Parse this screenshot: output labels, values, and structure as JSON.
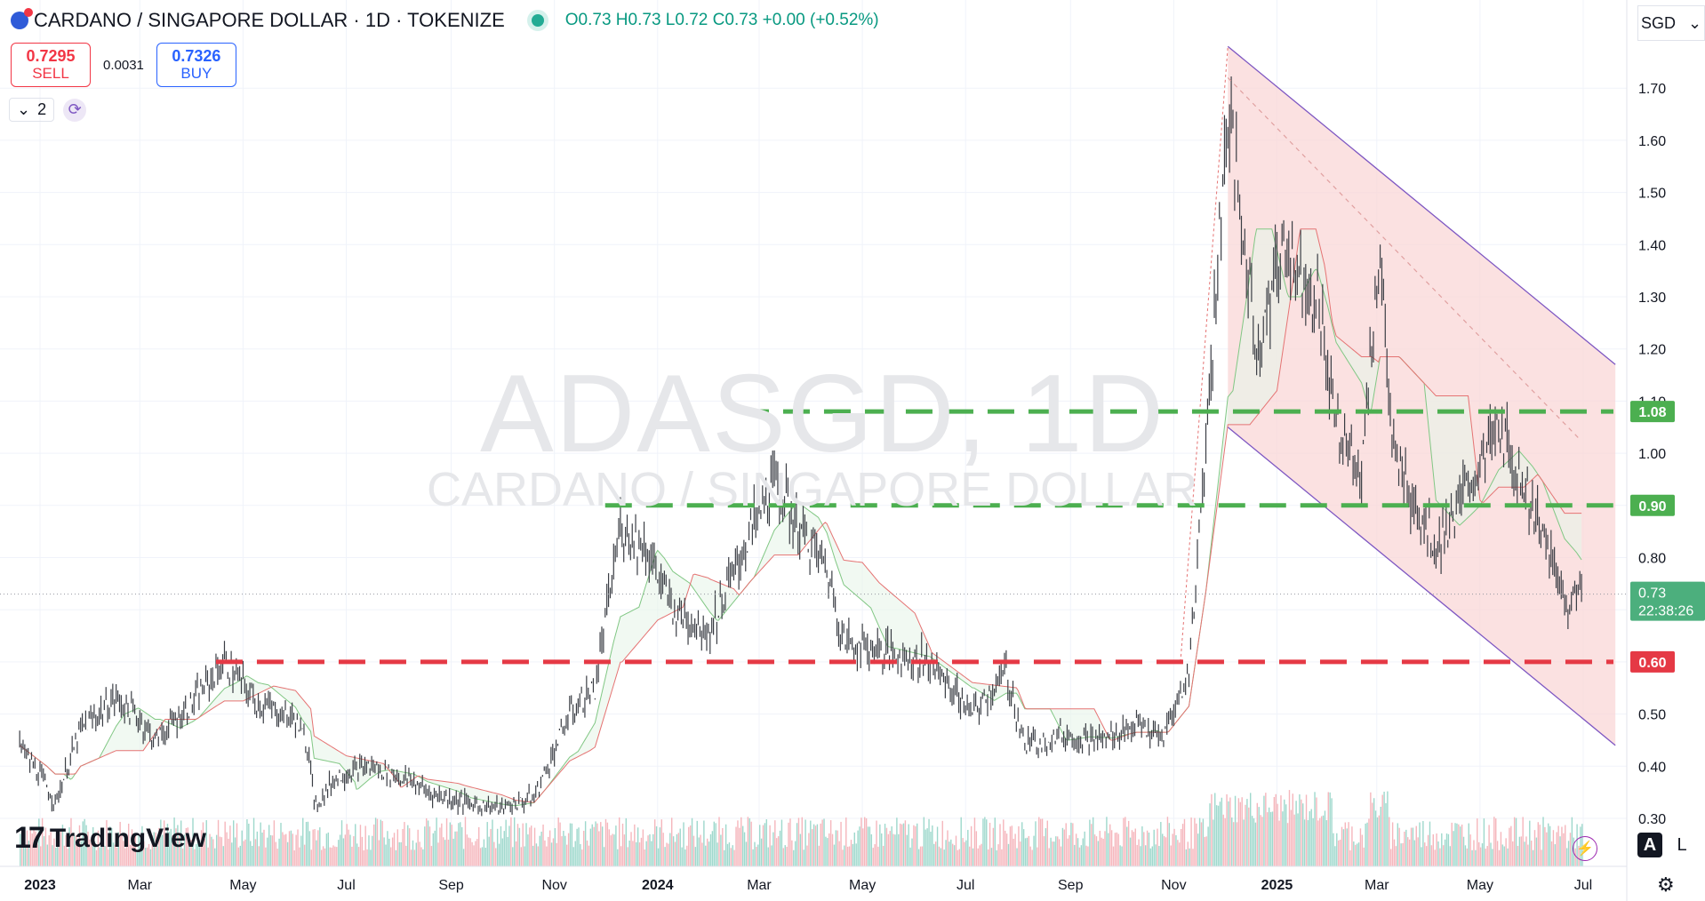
{
  "header": {
    "title": "CARDANO / SINGAPORE DOLLAR · 1D · TOKENIZE",
    "ohlc": {
      "o_label": "O",
      "o": "0.73",
      "h_label": "H",
      "h": "0.73",
      "l_label": "L",
      "l": "0.72",
      "c_label": "C",
      "c": "0.73",
      "change": "+0.00 (+0.52%)"
    }
  },
  "trade": {
    "sell_price": "0.7295",
    "sell_label": "SELL",
    "spread": "0.0031",
    "buy_price": "0.7326",
    "buy_label": "BUY"
  },
  "indicators": {
    "count": "2"
  },
  "currency": "SGD",
  "watermark": {
    "symbol": "ADASGD, 1D",
    "name": "CARDANO / SINGAPORE DOLLAR"
  },
  "brand": "TradingView",
  "axis_buttons": {
    "auto": "A",
    "log": "L"
  },
  "colors": {
    "up": "#089981",
    "down": "#f23645",
    "support": "#4caf50",
    "resistance": "#e53945",
    "channel": "#7e57c2",
    "channel_fill": "#f9d7d7"
  },
  "chart_data": {
    "type": "candlestick",
    "symbol": "ADASGD",
    "interval": "1D",
    "x_ticks": [
      "2023",
      "Mar",
      "May",
      "Jul",
      "Sep",
      "Nov",
      "2024",
      "Mar",
      "May",
      "Jul",
      "Sep",
      "Nov",
      "2025",
      "Mar",
      "May",
      "Jul"
    ],
    "x_tick_dates": [
      "2023-01-01",
      "2023-03-01",
      "2023-05-01",
      "2023-07-01",
      "2023-09-01",
      "2023-11-01",
      "2024-01-01",
      "2024-03-01",
      "2024-05-01",
      "2024-07-01",
      "2024-09-01",
      "2024-11-01",
      "2025-01-01",
      "2025-03-01",
      "2025-05-01",
      "2025-07-01"
    ],
    "y_ticks": [
      "0.30",
      "0.40",
      "0.50",
      "0.60",
      "0.70",
      "0.80",
      "0.90",
      "1.00",
      "1.10",
      "1.20",
      "1.30",
      "1.40",
      "1.50",
      "1.60",
      "1.70"
    ],
    "y_tick_values": [
      0.3,
      0.4,
      0.5,
      0.6,
      0.7,
      0.8,
      0.9,
      1.0,
      1.1,
      1.2,
      1.3,
      1.4,
      1.5,
      1.6,
      1.7
    ],
    "ylim": [
      0.25,
      1.82
    ],
    "last_price": {
      "value": "0.73",
      "countdown": "22:38:26"
    },
    "horizontal_levels": [
      {
        "label": "1.08",
        "value": 1.08,
        "color": "#4caf50",
        "style": "dashed",
        "from": "2024-02-20"
      },
      {
        "label": "0.90",
        "value": 0.9,
        "color": "#4caf50",
        "style": "dashed",
        "from": "2023-12-01"
      },
      {
        "label": "0.60",
        "value": 0.6,
        "color": "#e53945",
        "style": "dashed",
        "from": "2023-04-15"
      }
    ],
    "price_path": [
      [
        "2022-12-20",
        0.44
      ],
      [
        "2023-01-05",
        0.36
      ],
      [
        "2023-01-10",
        0.33
      ],
      [
        "2023-01-25",
        0.47
      ],
      [
        "2023-02-15",
        0.53
      ],
      [
        "2023-03-01",
        0.49
      ],
      [
        "2023-03-10",
        0.45
      ],
      [
        "2023-04-01",
        0.52
      ],
      [
        "2023-04-15",
        0.58
      ],
      [
        "2023-04-20",
        0.6
      ],
      [
        "2023-05-10",
        0.52
      ],
      [
        "2023-06-01",
        0.49
      ],
      [
        "2023-06-10",
        0.42
      ],
      [
        "2023-06-12",
        0.32
      ],
      [
        "2023-06-25",
        0.38
      ],
      [
        "2023-07-15",
        0.4
      ],
      [
        "2023-08-10",
        0.37
      ],
      [
        "2023-08-18",
        0.35
      ],
      [
        "2023-09-10",
        0.33
      ],
      [
        "2023-10-01",
        0.32
      ],
      [
        "2023-10-20",
        0.34
      ],
      [
        "2023-11-10",
        0.5
      ],
      [
        "2023-11-25",
        0.55
      ],
      [
        "2023-12-10",
        0.86
      ],
      [
        "2023-12-25",
        0.82
      ],
      [
        "2024-01-10",
        0.7
      ],
      [
        "2024-02-01",
        0.66
      ],
      [
        "2024-02-25",
        0.85
      ],
      [
        "2024-03-10",
        0.95
      ],
      [
        "2024-03-20",
        0.88
      ],
      [
        "2024-04-10",
        0.78
      ],
      [
        "2024-04-20",
        0.64
      ],
      [
        "2024-05-15",
        0.62
      ],
      [
        "2024-06-10",
        0.6
      ],
      [
        "2024-07-05",
        0.5
      ],
      [
        "2024-07-25",
        0.58
      ],
      [
        "2024-08-05",
        0.44
      ],
      [
        "2024-08-25",
        0.46
      ],
      [
        "2024-09-20",
        0.45
      ],
      [
        "2024-10-10",
        0.48
      ],
      [
        "2024-10-25",
        0.45
      ],
      [
        "2024-11-10",
        0.58
      ],
      [
        "2024-11-20",
        1.02
      ],
      [
        "2024-12-03",
        1.66
      ],
      [
        "2024-12-20",
        1.2
      ],
      [
        "2025-01-05",
        1.4
      ],
      [
        "2025-01-25",
        1.3
      ],
      [
        "2025-02-05",
        1.05
      ],
      [
        "2025-02-20",
        0.97
      ],
      [
        "2025-03-03",
        1.4
      ],
      [
        "2025-03-10",
        1.0
      ],
      [
        "2025-04-05",
        0.82
      ],
      [
        "2025-04-25",
        0.94
      ],
      [
        "2025-05-12",
        1.05
      ],
      [
        "2025-06-01",
        0.9
      ],
      [
        "2025-06-20",
        0.72
      ],
      [
        "2025-06-30",
        0.73
      ]
    ],
    "channel": {
      "upper": [
        [
          "2024-12-03",
          1.78
        ],
        [
          "2025-07-20",
          1.17
        ]
      ],
      "lower": [
        [
          "2024-12-03",
          1.05
        ],
        [
          "2025-07-20",
          0.44
        ]
      ],
      "mid": [
        [
          "2024-12-03",
          1.72
        ],
        [
          "2025-06-28",
          1.03
        ]
      ]
    },
    "trendline": [
      [
        "2024-11-05",
        0.6
      ],
      [
        "2024-12-03",
        1.78
      ]
    ]
  }
}
